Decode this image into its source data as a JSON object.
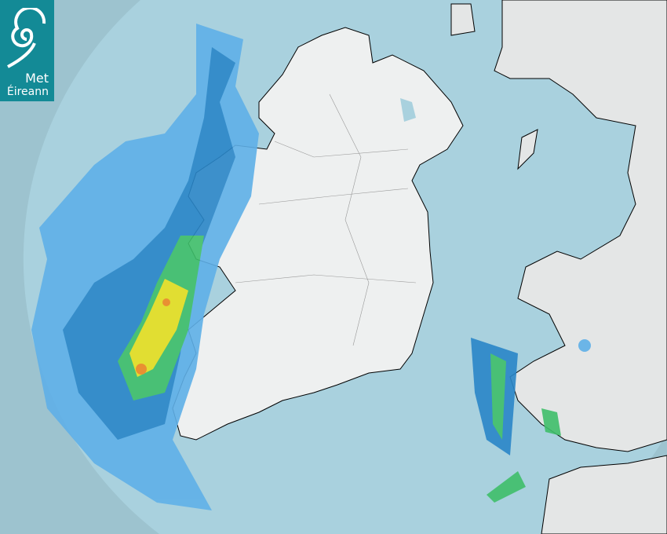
{
  "logo": {
    "line1": "Met",
    "line2": "Éireann",
    "icon": "spiral-swirl-icon"
  },
  "map": {
    "type": "weather-radar",
    "colors": {
      "sea_inside_range": "#a9d1de",
      "sea_outside_range": "#9dc3cf",
      "land": "#eef0f0",
      "border": "#000000",
      "rain_light": "#5fb0e8",
      "rain_moderate": "#2a86c8",
      "rain_heavy": "#3fbf6a",
      "rain_very_heavy": "#e8e020",
      "rain_intense": "#f08a20"
    }
  }
}
